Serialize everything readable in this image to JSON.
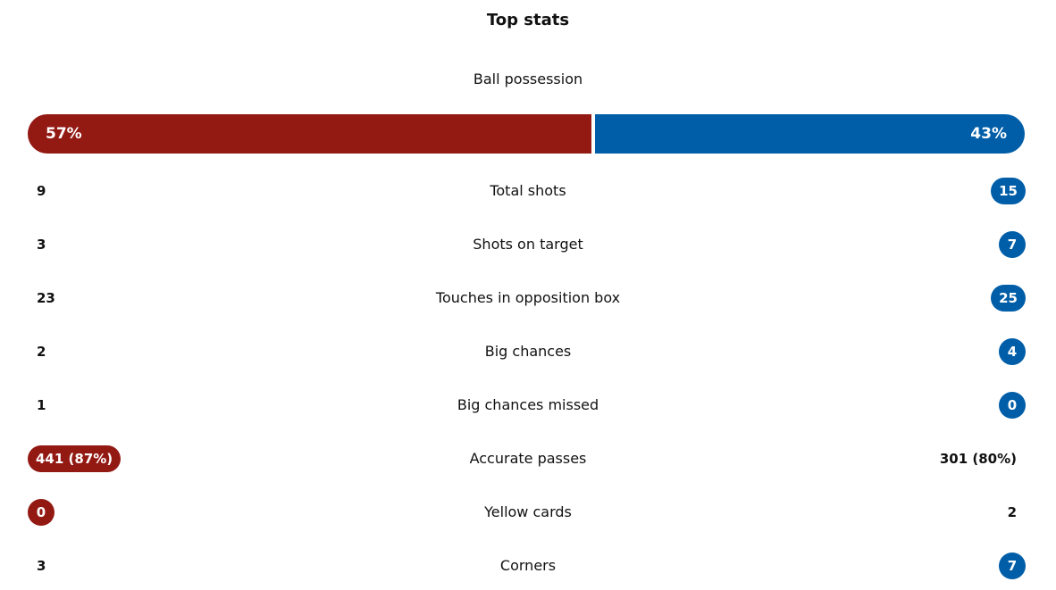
{
  "header": {
    "title": "Top stats"
  },
  "possession": {
    "label": "Ball possession",
    "values": [
      57,
      43
    ],
    "value_labels": [
      "57%",
      "43%"
    ],
    "colors": [
      "#931913",
      "#005ea8"
    ]
  },
  "stats": [
    {
      "label": "Total shots",
      "home": "9",
      "away": "15",
      "highlight": "away"
    },
    {
      "label": "Shots on target",
      "home": "3",
      "away": "7",
      "highlight": "away"
    },
    {
      "label": "Touches in opposition box",
      "home": "23",
      "away": "25",
      "highlight": "away"
    },
    {
      "label": "Big chances",
      "home": "2",
      "away": "4",
      "highlight": "away"
    },
    {
      "label": "Big chances missed",
      "home": "1",
      "away": "0",
      "highlight": "away"
    },
    {
      "label": "Accurate passes",
      "home": "441 (87%)",
      "away": "301 (80%)",
      "highlight": "home"
    },
    {
      "label": "Yellow cards",
      "home": "0",
      "away": "2",
      "highlight": "home"
    },
    {
      "label": "Corners",
      "home": "3",
      "away": "7",
      "highlight": "away"
    }
  ]
}
